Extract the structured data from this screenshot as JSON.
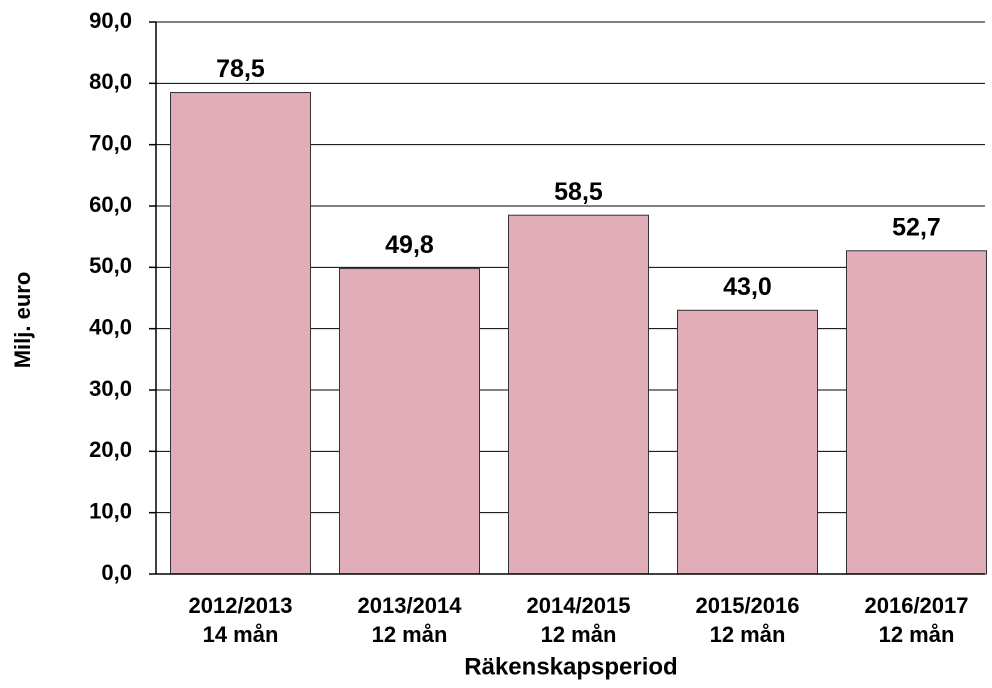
{
  "chart_data": {
    "type": "bar",
    "y_label": "Milj. euro",
    "x_label": "Räkenskapsperiod",
    "categories": [
      "2012/2013\n14 mån",
      "2013/2014\n12 mån",
      "2014/2015\n12 mån",
      "2015/2016\n12 mån",
      "2016/2017\n12 mån"
    ],
    "values": [
      78.5,
      49.8,
      58.5,
      43.0,
      52.7
    ],
    "value_labels": [
      "78,5",
      "49,8",
      "58,5",
      "43,0",
      "52,7"
    ],
    "color": "#e0adb9",
    "ylim": [
      0,
      90
    ],
    "yticks": [
      {
        "value": 0,
        "label": "0,0"
      },
      {
        "value": 10,
        "label": "10,0"
      },
      {
        "value": 20,
        "label": "20,0"
      },
      {
        "value": 30,
        "label": "30,0"
      },
      {
        "value": 40,
        "label": "40,0"
      },
      {
        "value": 50,
        "label": "50,0"
      },
      {
        "value": 60,
        "label": "60,0"
      },
      {
        "value": 70,
        "label": "70,0"
      },
      {
        "value": 80,
        "label": "80,0"
      },
      {
        "value": 90,
        "label": "90,0"
      }
    ],
    "grid": true
  }
}
